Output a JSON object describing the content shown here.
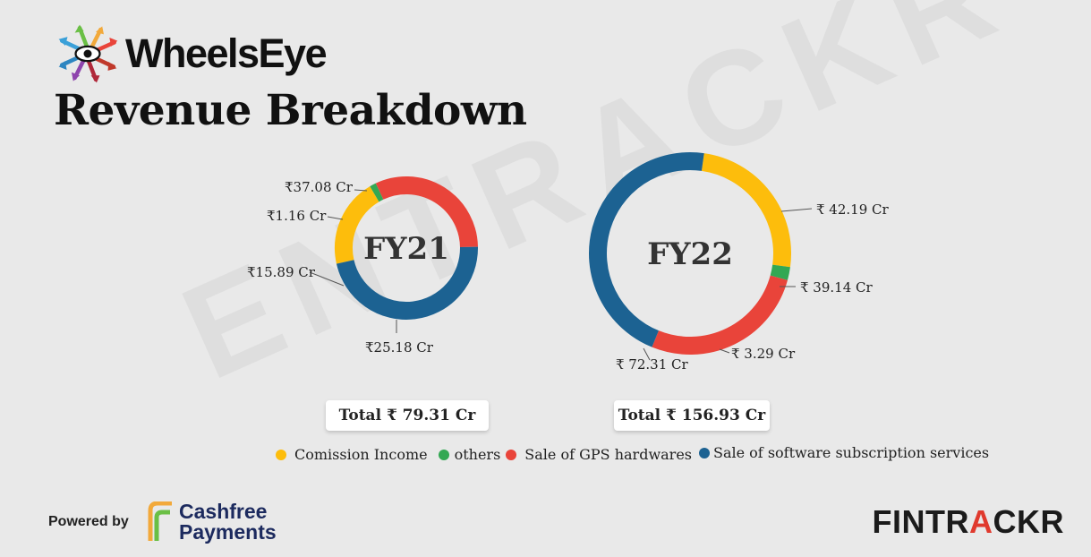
{
  "brand": {
    "name": "WheelsEye",
    "title": "Revenue Breakdown"
  },
  "watermark": "ENTRACKR",
  "colors": {
    "Comission Income": "#fdbd0c",
    "others": "#33a853",
    "Sale of GPS hardwares": "#e9443a",
    "Sale of software subscription services": "#1c6292"
  },
  "chart_data": [
    {
      "type": "pie",
      "title": "FY21",
      "unit": "₹ Cr",
      "categories": [
        "Comission Income",
        "others",
        "Sale of GPS hardwares",
        "Sale of software subscription services"
      ],
      "values": [
        15.89,
        1.16,
        25.18,
        37.08
      ],
      "labels": [
        "₹15.89 Cr",
        "₹1.16 Cr",
        "₹25.18 Cr",
        "₹37.08 Cr"
      ],
      "total": "Total ₹ 79.31 Cr"
    },
    {
      "type": "pie",
      "title": "FY22",
      "unit": "₹ Cr",
      "categories": [
        "Comission Income",
        "others",
        "Sale of GPS hardwares",
        "Sale of software subscription services"
      ],
      "values": [
        39.14,
        3.29,
        42.19,
        72.31
      ],
      "labels": [
        "₹ 39.14 Cr",
        "₹ 3.29 Cr",
        "₹ 42.19 Cr",
        "₹ 72.31 Cr"
      ],
      "total": "Total ₹ 156.93 Cr"
    }
  ],
  "legend": [
    "Comission Income",
    "others",
    "Sale of GPS hardwares",
    "Sale of software subscription services"
  ],
  "footer": {
    "powered_by": "Powered by",
    "cashfree_line1": "Cashfree",
    "cashfree_line2": "Payments",
    "fintrackr_a": "FINTR",
    "fintrackr_b": "A",
    "fintrackr_c": "CKR"
  }
}
